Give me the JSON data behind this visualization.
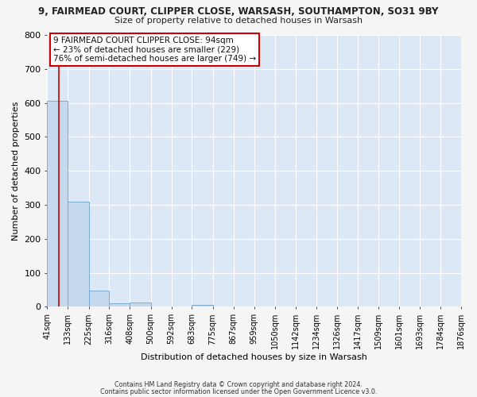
{
  "title": "9, FAIRMEAD COURT, CLIPPER CLOSE, WARSASH, SOUTHAMPTON, SO31 9BY",
  "subtitle": "Size of property relative to detached houses in Warsash",
  "xlabel": "Distribution of detached houses by size in Warsash",
  "ylabel": "Number of detached properties",
  "bar_edges": [
    41,
    133,
    225,
    316,
    408,
    500,
    592,
    683,
    775,
    867,
    959,
    1050,
    1142,
    1234,
    1326,
    1417,
    1509,
    1601,
    1693,
    1784,
    1876
  ],
  "bar_heights": [
    606,
    310,
    48,
    11,
    12,
    0,
    0,
    5,
    0,
    0,
    0,
    0,
    0,
    0,
    0,
    0,
    0,
    0,
    0,
    0
  ],
  "bar_color": "#c5d9ee",
  "bar_edge_color": "#7aadd4",
  "property_line_x": 94,
  "property_line_color": "#cc0000",
  "ylim": [
    0,
    800
  ],
  "yticks": [
    0,
    100,
    200,
    300,
    400,
    500,
    600,
    700,
    800
  ],
  "tick_labels": [
    "41sqm",
    "133sqm",
    "225sqm",
    "316sqm",
    "408sqm",
    "500sqm",
    "592sqm",
    "683sqm",
    "775sqm",
    "867sqm",
    "959sqm",
    "1050sqm",
    "1142sqm",
    "1234sqm",
    "1326sqm",
    "1417sqm",
    "1509sqm",
    "1601sqm",
    "1693sqm",
    "1784sqm",
    "1876sqm"
  ],
  "bg_color": "#dce8f5",
  "grid_color": "#ffffff",
  "fig_bg_color": "#f5f5f5",
  "annotation_line1": "9 FAIRMEAD COURT CLIPPER CLOSE: 94sqm",
  "annotation_line2": "← 23% of detached houses are smaller (229)",
  "annotation_line3": "76% of semi-detached houses are larger (749) →",
  "annotation_box_color": "#cc0000",
  "footer1": "Contains HM Land Registry data © Crown copyright and database right 2024.",
  "footer2": "Contains public sector information licensed under the Open Government Licence v3.0."
}
